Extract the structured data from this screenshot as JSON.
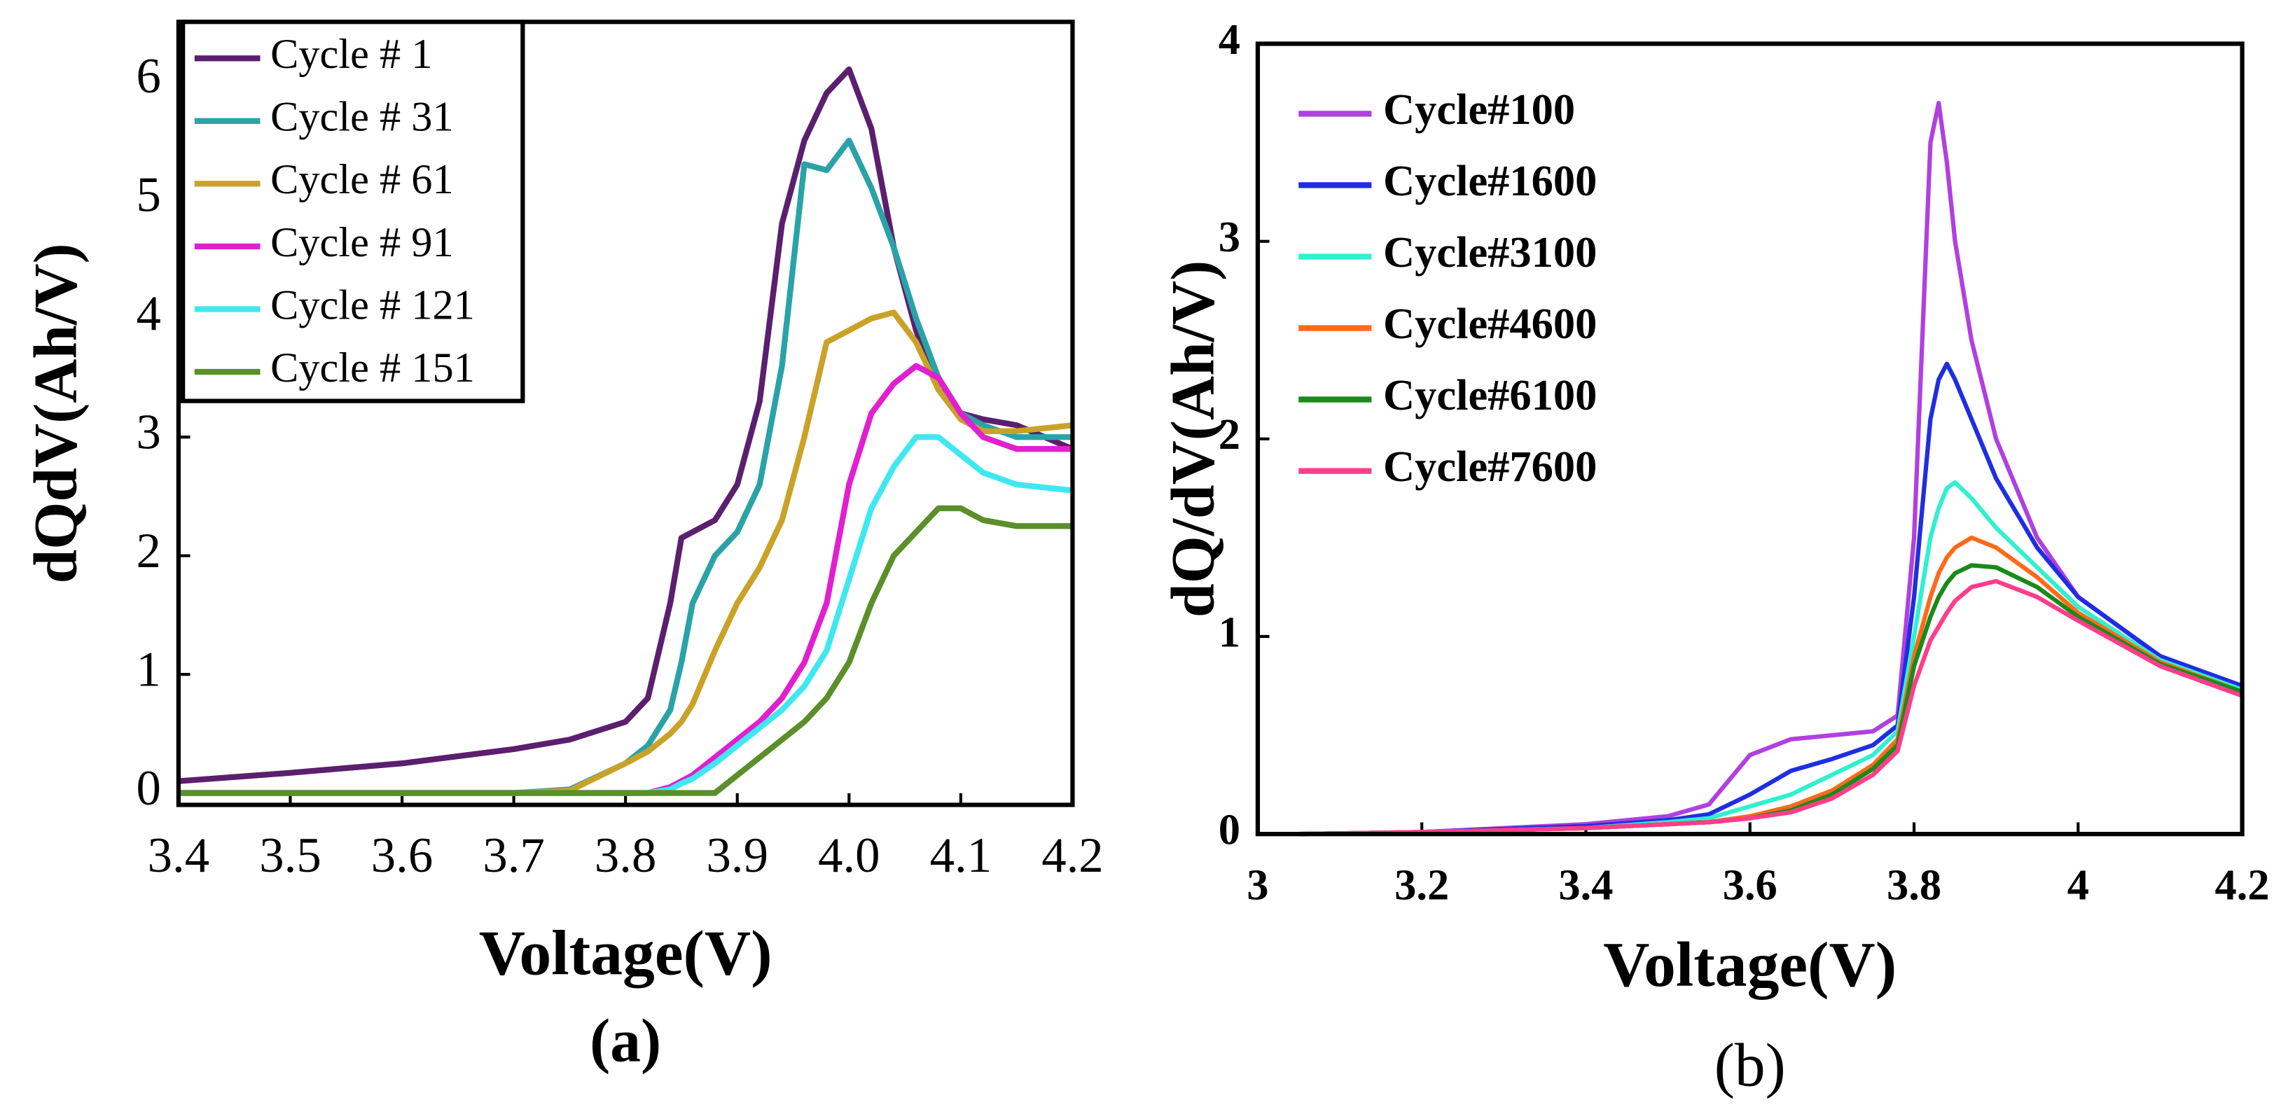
{
  "chart_data": [
    {
      "type": "line",
      "xlabel": "Voltage(V)",
      "ylabel": "dQdV(Ah/V)",
      "caption": "(a)",
      "x": [
        3.4,
        3.5,
        3.6,
        3.7,
        3.75,
        3.8,
        3.82,
        3.84,
        3.85,
        3.86,
        3.88,
        3.9,
        3.92,
        3.94,
        3.96,
        3.98,
        4.0,
        4.02,
        4.04,
        4.06,
        4.08,
        4.1,
        4.12,
        4.15,
        4.2
      ],
      "series": [
        {
          "name": "Cycle # 1",
          "color": "#5b1f6e",
          "values": [
            0.1,
            0.17,
            0.25,
            0.37,
            0.45,
            0.6,
            0.8,
            1.6,
            2.15,
            2.2,
            2.3,
            2.6,
            3.3,
            4.8,
            5.5,
            5.9,
            6.1,
            5.6,
            4.6,
            3.9,
            3.4,
            3.2,
            3.15,
            3.1,
            2.9
          ]
        },
        {
          "name": "Cycle # 31",
          "color": "#2aa3a8",
          "values": [
            0,
            0,
            0,
            0,
            0.03,
            0.25,
            0.4,
            0.7,
            1.1,
            1.6,
            2.0,
            2.2,
            2.6,
            3.6,
            5.3,
            5.25,
            5.5,
            5.1,
            4.6,
            4.0,
            3.5,
            3.2,
            3.1,
            3.0,
            3.0
          ]
        },
        {
          "name": "Cycle # 61",
          "color": "#c9a227",
          "values": [
            0,
            0,
            0,
            0,
            0.02,
            0.25,
            0.35,
            0.5,
            0.6,
            0.75,
            1.2,
            1.6,
            1.9,
            2.3,
            3.0,
            3.8,
            3.9,
            4.0,
            4.05,
            3.8,
            3.4,
            3.15,
            3.05,
            3.05,
            3.1
          ]
        },
        {
          "name": "Cycle # 91",
          "color": "#e020d0",
          "values": [
            0,
            0,
            0,
            0,
            0,
            0,
            0,
            0.05,
            0.1,
            0.15,
            0.3,
            0.45,
            0.6,
            0.8,
            1.1,
            1.6,
            2.6,
            3.2,
            3.45,
            3.6,
            3.5,
            3.2,
            3.0,
            2.9,
            2.9
          ]
        },
        {
          "name": "Cycle # 121",
          "color": "#3fe8f0",
          "values": [
            0,
            0,
            0,
            0,
            0,
            0,
            0,
            0.03,
            0.08,
            0.12,
            0.25,
            0.4,
            0.55,
            0.7,
            0.9,
            1.2,
            1.8,
            2.4,
            2.75,
            3.0,
            3.0,
            2.85,
            2.7,
            2.6,
            2.55
          ]
        },
        {
          "name": "Cycle # 151",
          "color": "#5a8f2a",
          "values": [
            0,
            0,
            0,
            0,
            0,
            0,
            0,
            0,
            0,
            0,
            0,
            0.15,
            0.3,
            0.45,
            0.6,
            0.8,
            1.1,
            1.6,
            2.0,
            2.2,
            2.4,
            2.4,
            2.3,
            2.25,
            2.25
          ]
        }
      ],
      "xlim": [
        3.4,
        4.2
      ],
      "xticks": [
        3.4,
        3.5,
        3.6,
        3.7,
        3.8,
        3.9,
        {
          "value": 4,
          "label": "4.0"
        },
        4.1,
        4.2
      ],
      "ylim": [
        -0.1,
        6.5
      ],
      "yticks": [
        0,
        1,
        2,
        3,
        4,
        5,
        6
      ],
      "legend": "upper left",
      "legend_box": true,
      "grid": false
    },
    {
      "type": "line",
      "xlabel": "Voltage(V)",
      "ylabel": "dQ/dV(Ah/V)",
      "caption": "(b)",
      "x": [
        3.05,
        3.2,
        3.4,
        3.5,
        3.55,
        3.6,
        3.65,
        3.7,
        3.75,
        3.78,
        3.8,
        3.82,
        3.83,
        3.84,
        3.85,
        3.87,
        3.9,
        3.95,
        4.0,
        4.1,
        4.2
      ],
      "series": [
        {
          "name": "Cycle#100",
          "color": "#b040e0",
          "values": [
            0,
            0.01,
            0.05,
            0.09,
            0.15,
            0.4,
            0.48,
            0.5,
            0.52,
            0.6,
            1.5,
            3.5,
            3.7,
            3.4,
            3.0,
            2.5,
            2.0,
            1.5,
            1.2,
            0.9,
            0.75
          ]
        },
        {
          "name": "Cycle#1600",
          "color": "#1f2ee0",
          "values": [
            0,
            0.01,
            0.04,
            0.07,
            0.1,
            0.2,
            0.32,
            0.38,
            0.45,
            0.55,
            1.2,
            2.1,
            2.3,
            2.38,
            2.3,
            2.1,
            1.8,
            1.45,
            1.2,
            0.9,
            0.75
          ]
        },
        {
          "name": "Cycle#3100",
          "color": "#30f0d0",
          "values": [
            0,
            0.01,
            0.03,
            0.06,
            0.08,
            0.14,
            0.2,
            0.3,
            0.4,
            0.52,
            1.0,
            1.5,
            1.65,
            1.75,
            1.78,
            1.7,
            1.55,
            1.35,
            1.15,
            0.88,
            0.73
          ]
        },
        {
          "name": "Cycle#4600",
          "color": "#ff6a1a",
          "values": [
            0,
            0.01,
            0.03,
            0.05,
            0.06,
            0.09,
            0.14,
            0.22,
            0.35,
            0.48,
            0.9,
            1.2,
            1.32,
            1.4,
            1.45,
            1.5,
            1.45,
            1.3,
            1.12,
            0.87,
            0.72
          ]
        },
        {
          "name": "Cycle#6100",
          "color": "#1a8a1a",
          "values": [
            0,
            0.01,
            0.03,
            0.05,
            0.06,
            0.08,
            0.12,
            0.2,
            0.33,
            0.45,
            0.85,
            1.1,
            1.2,
            1.27,
            1.32,
            1.36,
            1.35,
            1.25,
            1.1,
            0.86,
            0.72
          ]
        },
        {
          "name": "Cycle#7600",
          "color": "#ff3d8a",
          "values": [
            0,
            0.01,
            0.03,
            0.05,
            0.06,
            0.08,
            0.11,
            0.18,
            0.3,
            0.42,
            0.75,
            0.98,
            1.05,
            1.12,
            1.18,
            1.25,
            1.28,
            1.2,
            1.08,
            0.85,
            0.7
          ]
        }
      ],
      "xlim": [
        3,
        4.2
      ],
      "xticks": [
        3,
        3.2,
        3.4,
        3.6,
        3.8,
        4,
        4.2
      ],
      "ylim": [
        0,
        4
      ],
      "yticks": [
        0,
        1,
        2,
        3,
        4
      ],
      "legend": "upper left",
      "legend_box": false,
      "grid": false
    }
  ]
}
